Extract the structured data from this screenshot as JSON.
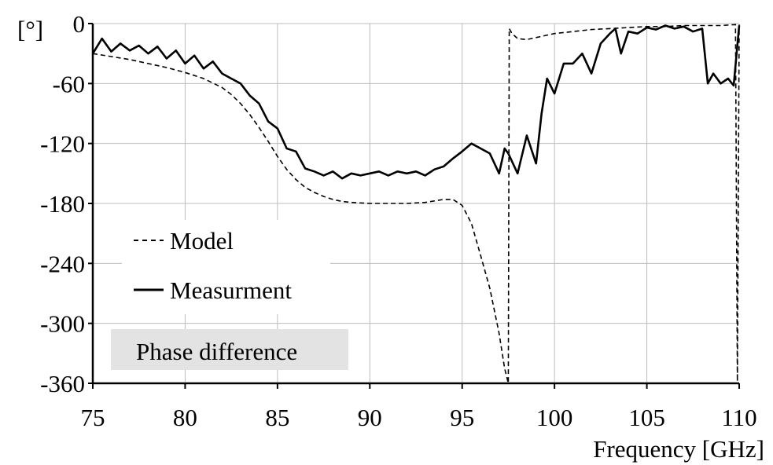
{
  "chart_data": {
    "type": "line",
    "xlabel": "Frequency [GHz]",
    "ylabel": "[°]",
    "xlim": [
      75,
      110
    ],
    "ylim": [
      -360,
      0
    ],
    "xticks": [
      75,
      80,
      85,
      90,
      95,
      100,
      105,
      110
    ],
    "yticks": [
      0,
      -60,
      -120,
      -180,
      -240,
      -300,
      -360
    ],
    "grid": true,
    "legend_placement": "lower-left",
    "annotation": "Phase difference",
    "series": [
      {
        "name": "Model",
        "style": "dashed",
        "color": "#000000",
        "x": [
          75,
          76,
          77,
          78,
          79,
          80,
          81,
          82,
          82.5,
          83,
          83.5,
          84,
          84.5,
          85,
          85.5,
          86,
          86.5,
          87,
          87.5,
          88,
          88.5,
          89,
          90,
          91,
          92,
          93,
          94,
          94.5,
          95,
          95.5,
          96,
          96.5,
          97,
          97.3,
          97.5,
          97.55,
          97.7,
          98,
          98.5,
          99,
          100,
          101,
          102,
          103,
          104,
          105,
          106,
          107,
          108,
          109,
          109.8,
          109.9,
          110
        ],
        "y": [
          -30,
          -33,
          -36,
          -40,
          -44,
          -49,
          -55,
          -64,
          -71,
          -80,
          -91,
          -104,
          -118,
          -133,
          -146,
          -156,
          -164,
          -169,
          -173,
          -176,
          -178,
          -179,
          -180,
          -180,
          -180,
          -179,
          -176,
          -176,
          -182,
          -200,
          -232,
          -265,
          -310,
          -345,
          -360,
          -5,
          -10,
          -15,
          -16,
          -14,
          -10,
          -8,
          -6,
          -5,
          -4,
          -3,
          -3,
          -2,
          -2,
          -2,
          -1,
          -358,
          -1
        ]
      },
      {
        "name": "Measurment",
        "style": "solid",
        "color": "#000000",
        "x": [
          75,
          75.5,
          76,
          76.5,
          77,
          77.5,
          78,
          78.5,
          79,
          79.5,
          80,
          80.5,
          81,
          81.5,
          82,
          82.5,
          83,
          83.5,
          84,
          84.5,
          85,
          85.5,
          86,
          86.5,
          87,
          87.5,
          88,
          88.5,
          89,
          89.5,
          90,
          90.5,
          91,
          91.5,
          92,
          92.5,
          93,
          93.5,
          94,
          94.5,
          95,
          95.5,
          96,
          96.5,
          97,
          97.3,
          97.5,
          98,
          98.5,
          99,
          99.3,
          99.6,
          100,
          100.5,
          101,
          101.5,
          102,
          102.5,
          103,
          103.3,
          103.6,
          104,
          104.5,
          105,
          105.5,
          106,
          106.5,
          107,
          107.5,
          108,
          108.3,
          108.6,
          109,
          109.4,
          109.7,
          110
        ],
        "y": [
          -30,
          -15,
          -28,
          -20,
          -27,
          -22,
          -30,
          -23,
          -35,
          -27,
          -40,
          -32,
          -45,
          -38,
          -50,
          -55,
          -60,
          -72,
          -80,
          -98,
          -105,
          -125,
          -128,
          -145,
          -148,
          -152,
          -148,
          -155,
          -150,
          -152,
          -150,
          -148,
          -152,
          -148,
          -150,
          -148,
          -152,
          -146,
          -143,
          -135,
          -128,
          -120,
          -125,
          -130,
          -150,
          -125,
          -130,
          -150,
          -112,
          -140,
          -90,
          -55,
          -70,
          -40,
          -40,
          -30,
          -50,
          -20,
          -10,
          -5,
          -30,
          -8,
          -10,
          -4,
          -6,
          -2,
          -5,
          -3,
          -8,
          -5,
          -60,
          -50,
          -60,
          -55,
          -62,
          -2
        ]
      }
    ]
  }
}
